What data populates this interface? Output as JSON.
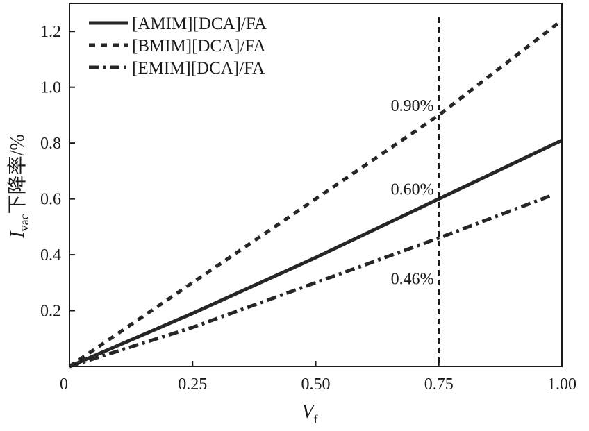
{
  "chart_data": {
    "type": "line",
    "title": "",
    "xlabel": "V",
    "xlabel_sub": "f",
    "ylabel_main": "I",
    "ylabel_sub": "vac",
    "ylabel_rest": "下降率/%",
    "xlim": [
      0,
      1.0
    ],
    "ylim": [
      0,
      1.3
    ],
    "xticks": [
      0,
      0.25,
      0.5,
      0.75,
      1.0
    ],
    "xtick_labels": [
      "0",
      "0.25",
      "0.50",
      "0.75",
      "1.00"
    ],
    "yticks": [
      0.2,
      0.4,
      0.6,
      0.8,
      1.0,
      1.2
    ],
    "ytick_labels": [
      "0.2",
      "0.4",
      "0.6",
      "0.8",
      "1.0",
      "1.2"
    ],
    "legend_position": "top-left",
    "grid": false,
    "series": [
      {
        "name": "[AMIM][DCA]/FA",
        "style": "solid",
        "x": [
          0,
          0.25,
          0.5,
          0.75,
          1.0
        ],
        "values": [
          0,
          0.19,
          0.39,
          0.6,
          0.81
        ]
      },
      {
        "name": "[BMIM][DCA]/FA",
        "style": "dashed",
        "x": [
          0,
          0.25,
          0.5,
          0.75,
          1.0
        ],
        "values": [
          0,
          0.3,
          0.6,
          0.9,
          1.24
        ]
      },
      {
        "name": "[EMIM][DCA]/FA",
        "style": "dashdot",
        "x": [
          0,
          0.25,
          0.5,
          0.75,
          0.975
        ],
        "values": [
          0,
          0.14,
          0.3,
          0.46,
          0.61
        ]
      }
    ],
    "reference_line": {
      "orientation": "vertical",
      "x": 0.75
    },
    "annotations": [
      {
        "text": "0.90%",
        "x": 0.74,
        "y": 0.935
      },
      {
        "text": "0.60%",
        "x": 0.74,
        "y": 0.635
      },
      {
        "text": "0.46%",
        "x": 0.74,
        "y": 0.315
      }
    ]
  }
}
